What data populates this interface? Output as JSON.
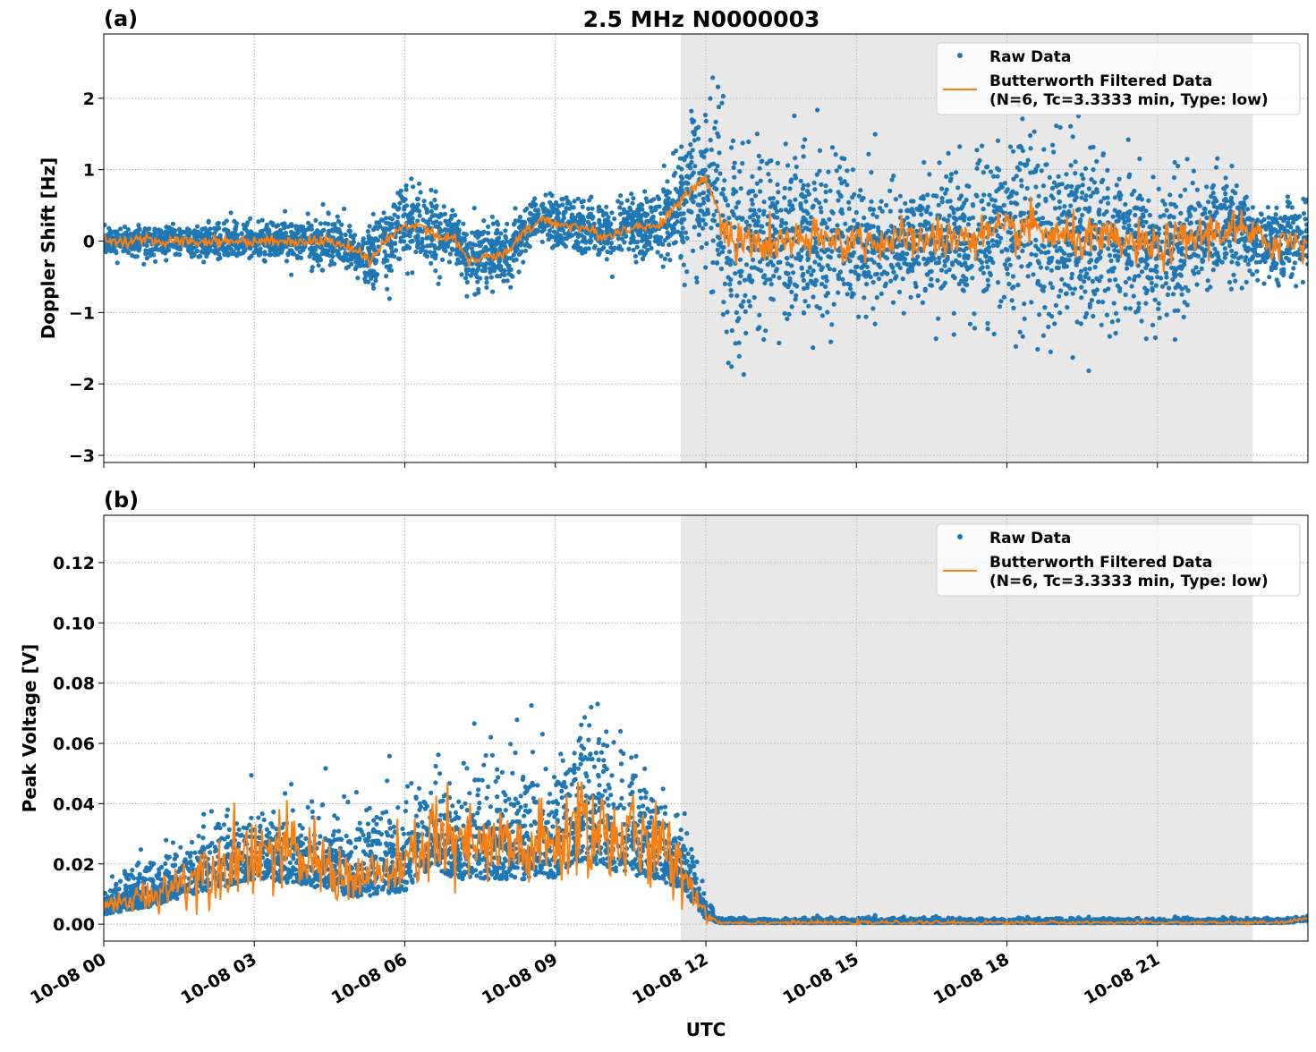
{
  "title": "2.5 MHz N0000003",
  "xlabel": "UTC",
  "x_tick_labels": [
    "10-08 00",
    "10-08 03",
    "10-08 06",
    "10-08 09",
    "10-08 12",
    "10-08 15",
    "10-08 18",
    "10-08 21"
  ],
  "x_ticks_hours": [
    0,
    3,
    6,
    9,
    12,
    15,
    18,
    21
  ],
  "xlim_hours": [
    0,
    24
  ],
  "shaded_interval_hours": [
    11.5,
    22.9
  ],
  "colors": {
    "raw": "#1f77b4",
    "filtered": "#ff7f0e",
    "shade": "#e8e8e8",
    "grid": "#b0b0b0"
  },
  "legend": {
    "raw": "Raw Data",
    "filtered_line1": "Butterworth Filtered Data",
    "filtered_line2": "(N=6, Tc=3.3333 min, Type: low)"
  },
  "chart_data": [
    {
      "type": "scatter",
      "panel_label": "(a)",
      "ylabel": "Doppler Shift [Hz]",
      "ylim": [
        -3.1,
        2.9
      ],
      "y_ticks": [
        2,
        1,
        0,
        -1,
        -2,
        -3
      ],
      "y_tick_labels": [
        "2",
        "1",
        "0",
        "−1",
        "−2",
        "−3"
      ],
      "grid": true,
      "legend_position": "top-right",
      "filtered_anchor_hours": [
        0,
        1,
        2,
        3,
        4,
        4.5,
        5,
        5.3,
        5.6,
        6,
        6.3,
        6.7,
        7,
        7.3,
        7.7,
        8,
        8.3,
        8.7,
        9,
        9.5,
        10,
        10.5,
        11,
        11.3,
        11.7,
        12,
        12.2,
        12.5,
        13,
        14,
        15,
        16,
        17,
        18,
        18.5,
        19,
        20,
        21,
        22,
        22.5,
        23,
        24
      ],
      "filtered_anchor_values": [
        0,
        0,
        0,
        0,
        0,
        0,
        -0.1,
        -0.3,
        0,
        0.2,
        0.25,
        0.05,
        0.05,
        -0.3,
        -0.2,
        -0.2,
        0.05,
        0.3,
        0.25,
        0.2,
        0.05,
        0.2,
        0.2,
        0.4,
        0.7,
        0.9,
        0.5,
        0,
        -0.05,
        0,
        0,
        0,
        0.05,
        0.1,
        0.2,
        0.05,
        0,
        -0.1,
        0.1,
        0.2,
        0,
        0
      ],
      "raw_spread_hours": [
        0,
        4.5,
        6,
        9,
        11,
        12.3,
        16,
        18.5,
        23,
        24
      ],
      "raw_spread_values": [
        0.15,
        0.3,
        0.5,
        0.3,
        0.4,
        1.3,
        0.6,
        1.3,
        0.5,
        0.5
      ],
      "filtered_noise": [
        0.04,
        0.15
      ]
    },
    {
      "type": "scatter",
      "panel_label": "(b)",
      "ylabel": "Peak Voltage [V]",
      "ylim": [
        -0.0056,
        0.1357
      ],
      "y_ticks": [
        0,
        0.02,
        0.04,
        0.06,
        0.08,
        0.1,
        0.12
      ],
      "y_tick_labels": [
        "0.00",
        "0.02",
        "0.04",
        "0.06",
        "0.08",
        "0.10",
        "0.12"
      ],
      "grid": true,
      "legend_position": "top-right",
      "filtered_anchor_hours": [
        0,
        0.5,
        1,
        2,
        3,
        4,
        5,
        6,
        6.5,
        7,
        8,
        9,
        9.5,
        10,
        11,
        11.5,
        12,
        12.3,
        23.5,
        24
      ],
      "filtered_anchor_values": [
        0.005,
        0.008,
        0.01,
        0.018,
        0.025,
        0.022,
        0.015,
        0.018,
        0.03,
        0.025,
        0.025,
        0.025,
        0.035,
        0.03,
        0.025,
        0.02,
        0.003,
        0.0005,
        0.0005,
        0.002
      ],
      "raw_spread_hours": [
        0,
        2,
        4,
        6,
        9,
        10,
        11.5,
        12.2,
        24
      ],
      "raw_spread_values": [
        0.006,
        0.015,
        0.015,
        0.02,
        0.025,
        0.03,
        0.015,
        0.001,
        0.001
      ],
      "filtered_noise": [
        0.006,
        0.0003
      ]
    }
  ]
}
